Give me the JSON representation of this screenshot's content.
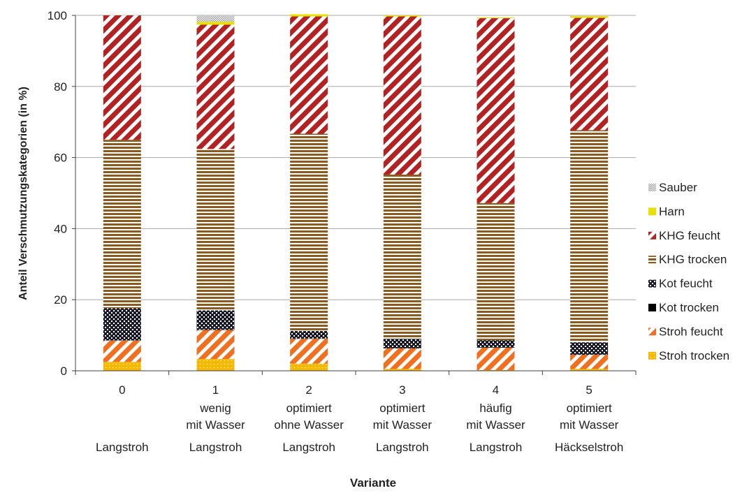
{
  "chart_data": {
    "type": "bar",
    "stacked": true,
    "xlabel": "Variante",
    "ylabel": "Anteil Verschmutzungskategorien (in %)",
    "ylim": [
      0,
      100
    ],
    "yticks": [
      0,
      20,
      40,
      60,
      80,
      100
    ],
    "grid": true,
    "legend_position": "right",
    "categories": [
      [
        "0",
        "",
        "Langstroh"
      ],
      [
        "1",
        "wenig",
        "mit Wasser",
        "Langstroh"
      ],
      [
        "2",
        "optimiert",
        "ohne Wasser",
        "Langstroh"
      ],
      [
        "3",
        "optimiert",
        "mit Wasser",
        "Langstroh"
      ],
      [
        "4",
        "häufig",
        "mit Wasser",
        "Langstroh"
      ],
      [
        "5",
        "optimiert",
        "mit Wasser",
        "Häckselstroh"
      ]
    ],
    "series": [
      {
        "name": "Stroh trocken",
        "color": "#f5b800",
        "pattern": "dots",
        "values": [
          2.5,
          3.3,
          2.0,
          0.5,
          0.2,
          0.5
        ]
      },
      {
        "name": "Stroh feucht",
        "color": "#f07020",
        "pattern": "diagonal",
        "values": [
          6.0,
          8.2,
          7.0,
          5.8,
          6.3,
          4.0
        ]
      },
      {
        "name": "Kot trocken",
        "color": "#000000",
        "pattern": "solid",
        "values": [
          0.1,
          0.1,
          0.1,
          0.1,
          0.1,
          0.1
        ]
      },
      {
        "name": "Kot feucht",
        "color": "#1a1a2a",
        "pattern": "checker",
        "values": [
          9.0,
          5.4,
          2.1,
          2.6,
          2.0,
          3.4
        ]
      },
      {
        "name": "KHG trocken",
        "color": "#8b5a1e",
        "pattern": "horizontal",
        "values": [
          47.4,
          45.4,
          55.5,
          46.2,
          38.6,
          59.7
        ]
      },
      {
        "name": "KHG feucht",
        "color": "#b22222",
        "pattern": "diagonal",
        "values": [
          35.0,
          35.0,
          33.0,
          44.5,
          52.0,
          31.6
        ]
      },
      {
        "name": "Harn",
        "color": "#e8e000",
        "pattern": "solid",
        "values": [
          0.0,
          0.8,
          0.6,
          0.3,
          0.2,
          0.5
        ]
      },
      {
        "name": "Sauber",
        "color": "#b8b8b8",
        "pattern": "dots",
        "values": [
          0.0,
          1.8,
          0.0,
          0.0,
          0.0,
          0.0
        ]
      }
    ]
  }
}
